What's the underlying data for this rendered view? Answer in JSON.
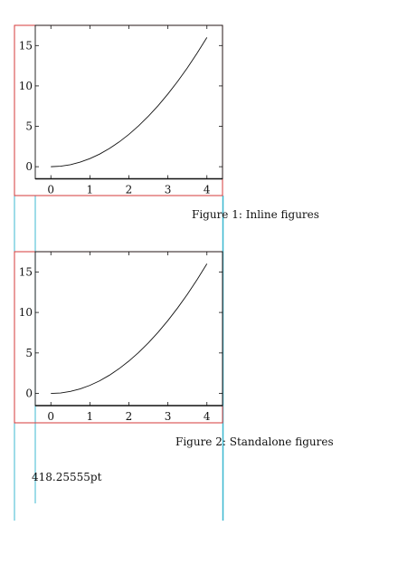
{
  "chart_data": [
    {
      "type": "line",
      "caption": "Figure 1: Inline figures",
      "x_ticks": [
        0,
        1,
        2,
        3,
        4
      ],
      "y_ticks": [
        0,
        5,
        10,
        15
      ],
      "xlim": [
        -0.4,
        4.4
      ],
      "ylim": [
        -1.5,
        17.5
      ],
      "series": [
        {
          "x": [
            0,
            0.25,
            0.5,
            0.75,
            1,
            1.25,
            1.5,
            1.75,
            2,
            2.25,
            2.5,
            2.75,
            3,
            3.25,
            3.5,
            3.75,
            4
          ],
          "y": [
            0,
            0.0625,
            0.25,
            0.5625,
            1,
            1.5625,
            2.25,
            3.0625,
            4,
            5.0625,
            6.25,
            7.5625,
            9,
            10.5625,
            12.25,
            14.0625,
            16
          ]
        }
      ]
    },
    {
      "type": "line",
      "caption": "Figure 2: Standalone figures",
      "x_ticks": [
        0,
        1,
        2,
        3,
        4
      ],
      "y_ticks": [
        0,
        5,
        10,
        15
      ],
      "xlim": [
        -0.4,
        4.4
      ],
      "ylim": [
        -1.5,
        17.5
      ],
      "series": [
        {
          "x": [
            0,
            0.25,
            0.5,
            0.75,
            1,
            1.25,
            1.5,
            1.75,
            2,
            2.25,
            2.5,
            2.75,
            3,
            3.25,
            3.5,
            3.75,
            4
          ],
          "y": [
            0,
            0.0625,
            0.25,
            0.5625,
            1,
            1.5625,
            2.25,
            3.0625,
            4,
            5.0625,
            6.25,
            7.5625,
            9,
            10.5625,
            12.25,
            14.0625,
            16
          ]
        }
      ]
    }
  ],
  "length_note": "418.25555pt",
  "colors": {
    "frame_red": "#d63a3a",
    "guide_cyan": "#3cb8d0",
    "axis": "#111111"
  }
}
